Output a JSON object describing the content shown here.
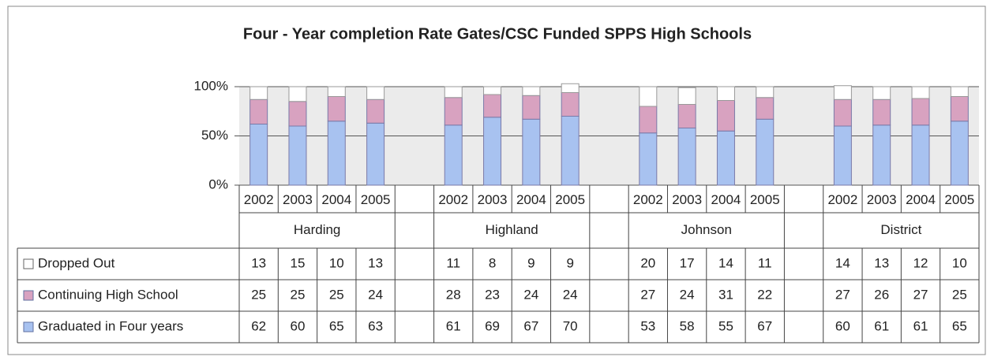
{
  "chart_data": {
    "type": "bar",
    "stacked": true,
    "title": "Four - Year completion Rate Gates/CSC Funded SPPS High Schools",
    "groups": [
      "Harding",
      "Highland",
      "Johnson",
      "District"
    ],
    "categories": [
      "2002",
      "2003",
      "2004",
      "2005",
      "2002",
      "2003",
      "2004",
      "2005",
      "2002",
      "2003",
      "2004",
      "2005",
      "2002",
      "2003",
      "2004",
      "2005"
    ],
    "series": [
      {
        "name": "Dropped Out",
        "color": "#ffffff",
        "values": [
          13,
          15,
          10,
          13,
          11,
          8,
          9,
          9,
          20,
          17,
          14,
          11,
          14,
          13,
          12,
          10
        ]
      },
      {
        "name": "Continuing High School",
        "color": "#d8a2c0",
        "values": [
          25,
          25,
          25,
          24,
          28,
          23,
          24,
          24,
          27,
          24,
          31,
          22,
          27,
          26,
          27,
          25
        ]
      },
      {
        "name": "Graduated in Four years",
        "color": "#a8c2f0",
        "values": [
          62,
          60,
          65,
          63,
          61,
          69,
          67,
          70,
          53,
          58,
          55,
          67,
          60,
          61,
          61,
          65
        ]
      }
    ],
    "ylim": [
      0,
      100
    ],
    "yticks": [
      {
        "value": 0,
        "label": "0%"
      },
      {
        "value": 50,
        "label": "50%"
      },
      {
        "value": 100,
        "label": "100%"
      }
    ],
    "grid": true
  }
}
